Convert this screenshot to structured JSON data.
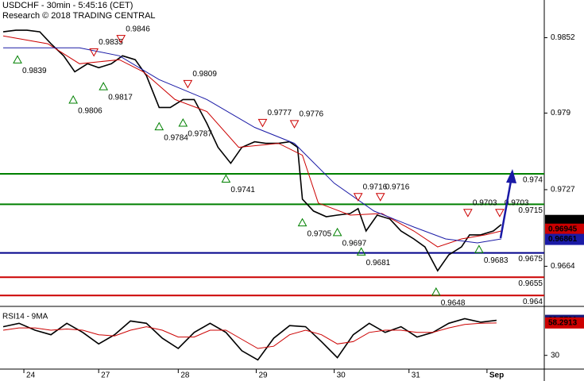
{
  "chart_data": [
    {
      "type": "line",
      "title": "USDCHF - 30min - 5:45:16 (CET)",
      "subtitle": "Research © 2018 TRADING CENTRAL",
      "xlim": [
        0,
        342
      ],
      "xticks": [
        {
          "value": 15,
          "label": "24"
        },
        {
          "value": 62,
          "label": "27"
        },
        {
          "value": 112,
          "label": "28"
        },
        {
          "value": 161,
          "label": "29"
        },
        {
          "value": 210,
          "label": "30"
        },
        {
          "value": 257,
          "label": "31"
        },
        {
          "value": 306,
          "label": "Sep"
        }
      ],
      "ylim": [
        0.9631,
        0.9883
      ],
      "yticks": [
        0.9852,
        0.979,
        0.9727,
        0.9664
      ],
      "series": [
        {
          "name": "USDCHF",
          "color": "#000000",
          "x": [
            2,
            10,
            17,
            25,
            32,
            40,
            47,
            55,
            62,
            70,
            77,
            85,
            92,
            100,
            107,
            115,
            122,
            130,
            137,
            145,
            152,
            160,
            167,
            175,
            182,
            187,
            190,
            197,
            205,
            212,
            220,
            225,
            230,
            237,
            245,
            252,
            260,
            267,
            275,
            282,
            290,
            295,
            302,
            310,
            315
          ],
          "values": [
            0.98568,
            0.98581,
            0.98581,
            0.98568,
            0.9847,
            0.98371,
            0.9824,
            0.98306,
            0.98273,
            0.98306,
            0.98371,
            0.98339,
            0.98208,
            0.97946,
            0.97946,
            0.98011,
            0.98011,
            0.97815,
            0.97618,
            0.97487,
            0.97618,
            0.97664,
            0.97651,
            0.97651,
            0.97664,
            0.97618,
            0.97192,
            0.97094,
            0.97048,
            0.97061,
            0.97074,
            0.97114,
            0.9693,
            0.97061,
            0.97029,
            0.9693,
            0.96865,
            0.96799,
            0.96603,
            0.96734,
            0.96799,
            0.96898,
            0.96898,
            0.9693,
            0.96983
          ]
        },
        {
          "name": "MA fast",
          "color": "#cc0000",
          "x": [
            2,
            30,
            50,
            75,
            90,
            110,
            130,
            150,
            175,
            190,
            200,
            220,
            240,
            260,
            275,
            290,
            305,
            315
          ],
          "values": [
            0.98535,
            0.9847,
            0.98306,
            0.98339,
            0.9824,
            0.98011,
            0.97913,
            0.97618,
            0.97651,
            0.97553,
            0.9716,
            0.97061,
            0.97074,
            0.9693,
            0.96799,
            0.96865,
            0.96898,
            0.9693
          ]
        },
        {
          "name": "MA slow",
          "color": "#1a1aa6",
          "x": [
            2,
            50,
            75,
            100,
            130,
            160,
            185,
            210,
            235,
            260,
            280,
            300,
            315
          ],
          "values": [
            0.98437,
            0.98437,
            0.98371,
            0.98175,
            0.98011,
            0.97782,
            0.97651,
            0.97323,
            0.97094,
            0.96963,
            0.96865,
            0.96832,
            0.96865
          ]
        }
      ],
      "levels": [
        {
          "value": 0.974,
          "color": "#008000"
        },
        {
          "value": 0.9715,
          "color": "#008000"
        },
        {
          "value": 0.9675,
          "color": "#00008b"
        },
        {
          "value": 0.9655,
          "color": "#cc0000"
        },
        {
          "value": 0.964,
          "color": "#cc0000"
        }
      ],
      "markers": [
        {
          "x": 11,
          "value": 0.9839,
          "kind": "low"
        },
        {
          "x": 59,
          "value": 0.9835,
          "kind": "high"
        },
        {
          "x": 76,
          "value": 0.9846,
          "kind": "high"
        },
        {
          "x": 46,
          "value": 0.9806,
          "kind": "low"
        },
        {
          "x": 65,
          "value": 0.9817,
          "kind": "low"
        },
        {
          "x": 100,
          "value": 0.9784,
          "kind": "low"
        },
        {
          "x": 115,
          "value": 0.9787,
          "kind": "low"
        },
        {
          "x": 118,
          "value": 0.9809,
          "kind": "high"
        },
        {
          "x": 165,
          "value": 0.9777,
          "kind": "high"
        },
        {
          "x": 185,
          "value": 0.9776,
          "kind": "high"
        },
        {
          "x": 142,
          "value": 0.9741,
          "kind": "low"
        },
        {
          "x": 190,
          "value": 0.9705,
          "kind": "low"
        },
        {
          "x": 212,
          "value": 0.9697,
          "kind": "low"
        },
        {
          "x": 227,
          "value": 0.9681,
          "kind": "low"
        },
        {
          "x": 225,
          "value": 0.9716,
          "kind": "high"
        },
        {
          "x": 239,
          "value": 0.9716,
          "kind": "high"
        },
        {
          "x": 274,
          "value": 0.9648,
          "kind": "low"
        },
        {
          "x": 294,
          "value": 0.9703,
          "kind": "high"
        },
        {
          "x": 314,
          "value": 0.9703,
          "kind": "high"
        },
        {
          "x": 301,
          "value": 0.9683,
          "kind": "low"
        }
      ],
      "last_values": [
        {
          "value": 0.97017,
          "color": "#000000"
        },
        {
          "value": 0.96945,
          "color": "#cc0000"
        },
        {
          "value": 0.96861,
          "color": "#1a1aa6"
        }
      ]
    },
    {
      "type": "line",
      "title": "RSI14 - 9MA",
      "xlim": [
        0,
        342
      ],
      "ylim": [
        18,
        70
      ],
      "yticks": [
        30
      ],
      "series": [
        {
          "name": "RSI14",
          "color": "#000000",
          "x": [
            2,
            12,
            22,
            32,
            42,
            52,
            62,
            72,
            82,
            92,
            102,
            112,
            122,
            132,
            142,
            152,
            162,
            172,
            182,
            192,
            202,
            212,
            222,
            232,
            242,
            252,
            262,
            272,
            282,
            292,
            302,
            312
          ],
          "values": [
            55,
            58,
            52,
            48,
            58,
            50,
            40,
            48,
            60,
            58,
            45,
            36,
            50,
            58,
            50,
            34,
            26,
            45,
            56,
            55,
            42,
            28,
            48,
            58,
            50,
            55,
            46,
            50,
            58,
            62,
            59,
            60.5791
          ]
        },
        {
          "name": "9MA",
          "color": "#cc0000",
          "x": [
            2,
            12,
            22,
            32,
            42,
            52,
            62,
            72,
            82,
            92,
            102,
            112,
            122,
            132,
            142,
            152,
            162,
            172,
            182,
            192,
            202,
            212,
            222,
            232,
            242,
            252,
            262,
            272,
            282,
            292,
            302,
            312
          ],
          "values": [
            52,
            54,
            54,
            52,
            53,
            52,
            48,
            47,
            52,
            55,
            52,
            46,
            46,
            52,
            52,
            44,
            36,
            38,
            48,
            52,
            48,
            40,
            42,
            50,
            52,
            52,
            50,
            50,
            54,
            57,
            58,
            58.2913
          ]
        }
      ],
      "last_values": [
        {
          "value": 60.5791,
          "color": "#1a1a7a"
        },
        {
          "value": 58.2913,
          "color": "#cc0000"
        }
      ]
    }
  ]
}
